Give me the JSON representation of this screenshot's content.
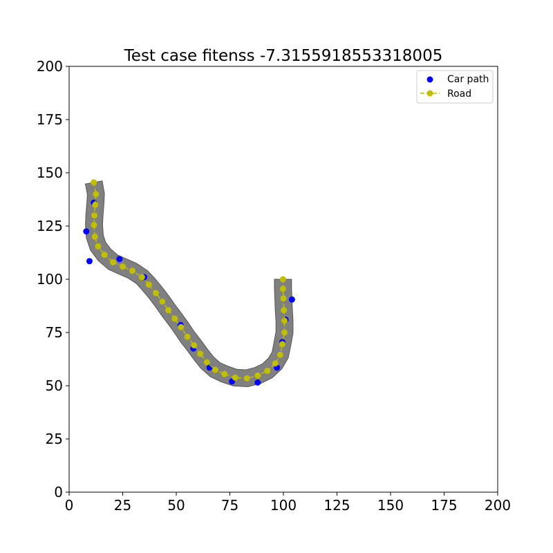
{
  "chart_data": {
    "type": "scatter",
    "title": "Test case fitenss -7.3155918553318005",
    "xlabel": "",
    "ylabel": "",
    "xlim": [
      0,
      200
    ],
    "ylim": [
      0,
      200
    ],
    "xticks": [
      0,
      25,
      50,
      75,
      100,
      125,
      150,
      175,
      200
    ],
    "yticks": [
      0,
      25,
      50,
      75,
      100,
      125,
      150,
      175,
      200
    ],
    "grid": false,
    "legend_position": "top-right",
    "road_width": 8,
    "series": [
      {
        "name": "Car path",
        "kind": "scatter",
        "color": "#0000ff",
        "x": [
          11.5,
          8,
          9.5,
          23.5,
          35,
          43.5,
          52,
          58,
          65.5,
          76,
          88,
          97,
          99.5,
          101,
          104
        ],
        "y": [
          136,
          122.5,
          108.5,
          109.5,
          101,
          89.5,
          78.5,
          67.5,
          58.5,
          52,
          51.5,
          58.5,
          70.5,
          81,
          90.5
        ]
      },
      {
        "name": "Road",
        "kind": "line-marker",
        "color": "#bfbf00",
        "edge_color": "#808080",
        "x": [
          11.5,
          12.5,
          12.2,
          11.8,
          11.6,
          12,
          13.5,
          16.5,
          20.5,
          25,
          29.5,
          34,
          37.2,
          40.5,
          43.5,
          46.3,
          49.3,
          52.2,
          55.2,
          58.3,
          61.2,
          64.3,
          68.2,
          72.5,
          77.5,
          83,
          88,
          92.5,
          96.2,
          98.5,
          99.5,
          100.5,
          100.5,
          100.2,
          100,
          99.8,
          99.8
        ],
        "y": [
          145.5,
          140,
          135,
          130,
          125.5,
          120,
          115.5,
          111.5,
          108,
          106,
          104,
          101,
          97.5,
          93.5,
          89.5,
          85.5,
          81.5,
          77.5,
          73,
          69,
          65,
          61,
          57.5,
          55.5,
          53.8,
          53.5,
          54.8,
          57,
          60.5,
          64.5,
          69.5,
          75,
          80.5,
          85.5,
          91,
          95.5,
          100
        ]
      }
    ]
  }
}
